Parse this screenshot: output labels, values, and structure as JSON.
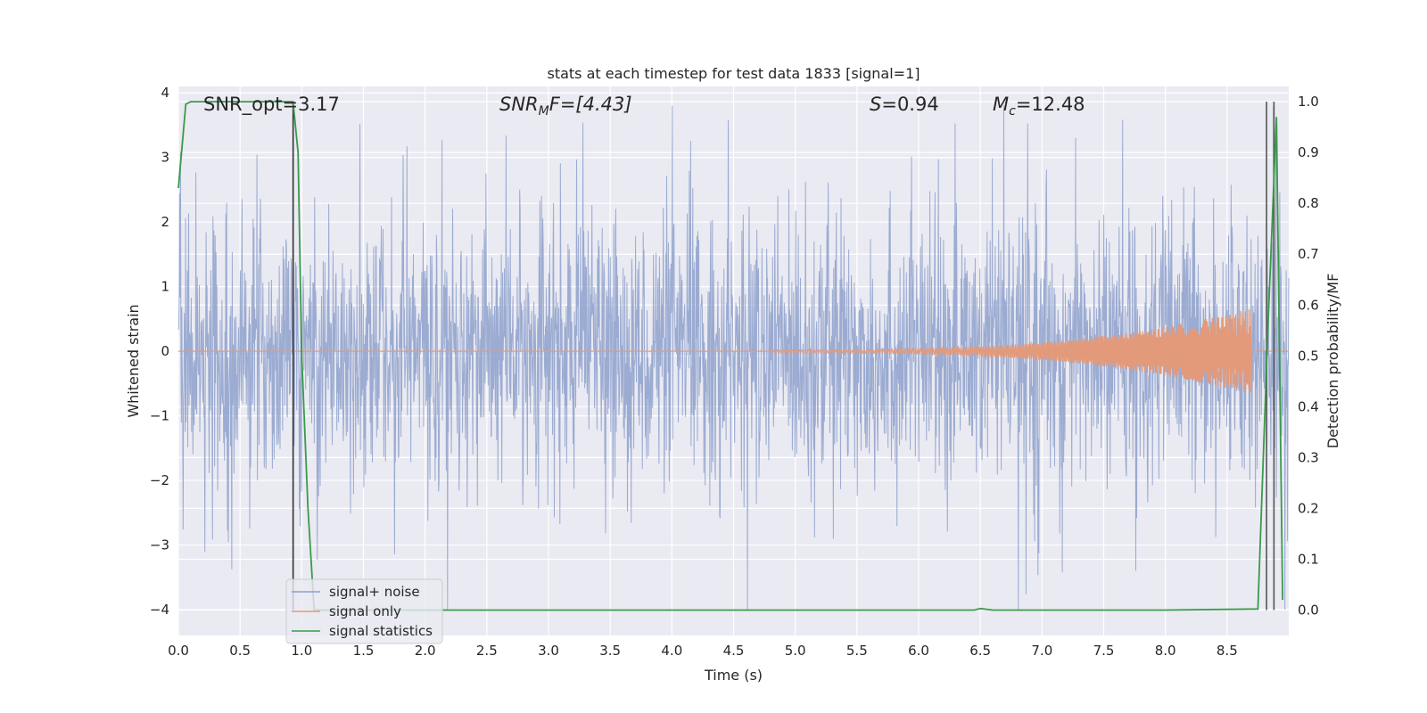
{
  "chart_data": {
    "type": "line",
    "title": "stats at each timestep for test data 1833 [signal=1]",
    "xlabel": "Time (s)",
    "ylabel_left": "Whitened strain",
    "ylabel_right": "Detection probability/MF",
    "xlim": [
      0.0,
      9.0
    ],
    "ylim_left": [
      -4.4,
      4.1
    ],
    "ylim_right": [
      -0.05,
      1.03
    ],
    "xticks": [
      0.0,
      0.5,
      1.0,
      1.5,
      2.0,
      2.5,
      3.0,
      3.5,
      4.0,
      4.5,
      5.0,
      5.5,
      6.0,
      6.5,
      7.0,
      7.5,
      8.0,
      8.5
    ],
    "xtick_labels": [
      "0.0",
      "0.5",
      "1.0",
      "1.5",
      "2.0",
      "2.5",
      "3.0",
      "3.5",
      "4.0",
      "4.5",
      "5.0",
      "5.5",
      "6.0",
      "6.5",
      "7.0",
      "7.5",
      "8.0",
      "8.5"
    ],
    "yticks_left": [
      -4,
      -3,
      -2,
      -1,
      0,
      1,
      2,
      3,
      4
    ],
    "ytick_labels_left": [
      "−4",
      "−3",
      "−2",
      "−1",
      "0",
      "1",
      "2",
      "3",
      "4"
    ],
    "yticks_right": [
      0.0,
      0.1,
      0.2,
      0.3,
      0.4,
      0.5,
      0.6,
      0.7,
      0.8,
      0.9,
      1.0
    ],
    "ytick_labels_right": [
      "0.0",
      "0.1",
      "0.2",
      "0.3",
      "0.4",
      "0.5",
      "0.6",
      "0.7",
      "0.8",
      "0.9",
      "1.0"
    ],
    "grid": true,
    "legend_position": "lower-left",
    "annotations": {
      "snr_opt": "SNR_opt=3.17",
      "snr_mf_prefix": "SNR",
      "snr_mf_sub": "M",
      "snr_mf_suffix": "F=[4.43]",
      "s_prefix": "S",
      "s_suffix": "=0.94",
      "mc_prefix": "M",
      "mc_sub": "c",
      "mc_suffix": "=12.48"
    },
    "series": [
      {
        "name": "signal+ noise",
        "axis": "left",
        "color": "#8da0cb",
        "description_range": [
          -4.0,
          3.8
        ],
        "typical_abs_peak": 2.2
      },
      {
        "name": "signal only",
        "axis": "left",
        "color": "#e39a7b",
        "chirp_start_time": 4.8,
        "chirp_end_time": 8.7,
        "chirp_peak_amplitude": 0.65
      },
      {
        "name": "signal statistics",
        "axis": "right",
        "color": "#3a9a4a",
        "x": [
          0.0,
          0.06,
          0.1,
          0.2,
          0.5,
          0.93,
          0.97,
          1.0,
          1.05,
          1.1,
          1.5,
          6.45,
          6.5,
          6.6,
          8.0,
          8.75,
          8.83,
          8.9,
          8.95
        ],
        "y": [
          0.83,
          0.995,
          1.0,
          1.0,
          1.0,
          1.0,
          0.9,
          0.5,
          0.2,
          0.0,
          0.0,
          0.0,
          0.003,
          0.0,
          0.0,
          0.002,
          0.55,
          0.97,
          0.02
        ]
      }
    ],
    "vertical_lines": [
      {
        "x": 0.93,
        "color": "#333333"
      },
      {
        "x": 8.82,
        "color": "#555555"
      },
      {
        "x": 8.88,
        "color": "#555555"
      }
    ]
  }
}
